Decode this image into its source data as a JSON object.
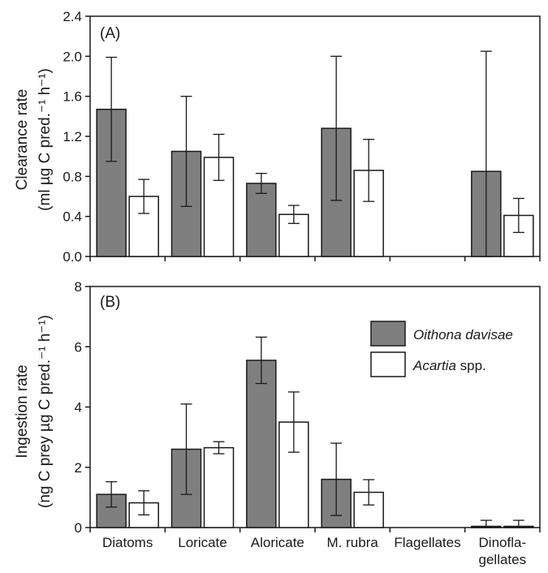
{
  "chart_data": [
    {
      "type": "bar",
      "panel_label": "(A)",
      "categories": [
        "Diatoms",
        "Loricate",
        "Aloricate",
        "M. rubra",
        "Flagellates",
        "Dinoflagellates"
      ],
      "ylabel_line1": "Clearance rate",
      "ylabel_line2": "(ml µg C pred.⁻¹ h⁻¹)",
      "ylim": [
        0,
        2.4
      ],
      "yticks": [
        "0.0",
        "0.4",
        "0.8",
        "1.2",
        "1.6",
        "2.0",
        "2.4"
      ],
      "series": [
        {
          "name": "Oithona davisae",
          "color": "#7f7f7f",
          "values": [
            1.47,
            1.05,
            0.73,
            1.28,
            null,
            0.85
          ],
          "errors": [
            0.52,
            0.55,
            0.1,
            0.72,
            null,
            1.2
          ]
        },
        {
          "name": "Acartia spp.",
          "color": "#ffffff",
          "values": [
            0.6,
            0.99,
            0.42,
            0.86,
            null,
            0.41
          ],
          "errors": [
            0.17,
            0.23,
            0.09,
            0.31,
            null,
            0.17
          ]
        }
      ]
    },
    {
      "type": "bar",
      "panel_label": "(B)",
      "categories": [
        "Diatoms",
        "Loricate",
        "Aloricate",
        "M. rubra",
        "Flagellates",
        "Dinoflagellates"
      ],
      "category_labels": [
        [
          "Diatoms"
        ],
        [
          "Loricate"
        ],
        [
          "Aloricate"
        ],
        [
          "M. rubra"
        ],
        [
          "Flagellates"
        ],
        [
          "Dinofla-",
          "gellates"
        ]
      ],
      "ylabel_line1": "Ingestion rate",
      "ylabel_line2": "(ng C prey µg C pred.⁻¹ h⁻¹)",
      "ylim": [
        0,
        8
      ],
      "yticks": [
        "0",
        "2",
        "4",
        "6",
        "8"
      ],
      "series": [
        {
          "name": "Oithona davisae",
          "color": "#7f7f7f",
          "values": [
            1.1,
            2.6,
            5.55,
            1.6,
            0,
            0.04
          ],
          "errors": [
            0.42,
            1.5,
            0.77,
            1.2,
            0,
            0.2
          ]
        },
        {
          "name": "Acartia spp.",
          "color": "#ffffff",
          "values": [
            0.82,
            2.65,
            3.5,
            1.17,
            0,
            0.04
          ],
          "errors": [
            0.4,
            0.2,
            1.0,
            0.42,
            0,
            0.2
          ]
        }
      ]
    }
  ],
  "legend": {
    "items": [
      {
        "italic": "Oithona davisae",
        "suffix": "",
        "color": "#7f7f7f"
      },
      {
        "italic": "Acartia",
        "suffix": " spp.",
        "color": "#ffffff"
      }
    ],
    "placement": "top-right of panel B"
  }
}
